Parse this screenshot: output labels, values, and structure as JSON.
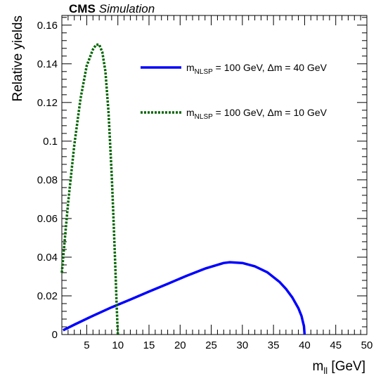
{
  "header": {
    "experiment": "CMS",
    "tag": "Simulation"
  },
  "chart_data": {
    "type": "line",
    "xlabel_main": "m",
    "xlabel_sub": "ll",
    "xlabel_unit": " [GeV]",
    "ylabel": "Relative yields",
    "xlim": [
      1,
      50
    ],
    "ylim": [
      0,
      0.165
    ],
    "x_ticks": [
      5,
      10,
      15,
      20,
      25,
      30,
      35,
      40,
      45,
      50
    ],
    "y_ticks": [
      0,
      0.02,
      0.04,
      0.06,
      0.08,
      0.1,
      0.12,
      0.14,
      0.16
    ],
    "y_tick_labels": [
      "0",
      "0.02",
      "0.04",
      "0.06",
      "0.08",
      "0.1",
      "0.12",
      "0.14",
      "0.16"
    ],
    "grid": false,
    "legend_position": "top-right",
    "series": [
      {
        "key": "dm40",
        "label_main": "m",
        "label_sub": "NLSP",
        "label_rest": "  =  100 GeV, Δm  =  40 GeV",
        "color": "#0000ff",
        "style": "solid",
        "x": [
          1.2,
          3,
          6,
          9,
          12,
          15,
          18,
          21,
          24,
          27,
          28,
          30,
          32,
          34,
          36,
          37,
          38,
          39,
          39.5,
          39.9,
          40
        ],
        "y": [
          0.0022,
          0.0051,
          0.0097,
          0.0141,
          0.0181,
          0.0222,
          0.0262,
          0.0303,
          0.0341,
          0.037,
          0.0374,
          0.037,
          0.0353,
          0.0322,
          0.0271,
          0.0236,
          0.0193,
          0.0136,
          0.0096,
          0.0043,
          0.0
        ]
      },
      {
        "key": "dm10",
        "label_main": "m",
        "label_sub": "NLSP",
        "label_rest": "  =  100 GeV, Δm  =  10 GeV",
        "color": "#006400",
        "style": "dotted",
        "x": [
          1.0,
          1.5,
          2,
          3,
          4,
          5,
          6,
          6.5,
          7,
          7.5,
          8,
          8.5,
          9,
          9.3,
          9.6,
          9.8,
          10
        ],
        "y": [
          0.032,
          0.05,
          0.068,
          0.098,
          0.122,
          0.139,
          0.1475,
          0.1498,
          0.15,
          0.146,
          0.136,
          0.115,
          0.083,
          0.06,
          0.034,
          0.016,
          0.0
        ]
      }
    ]
  }
}
